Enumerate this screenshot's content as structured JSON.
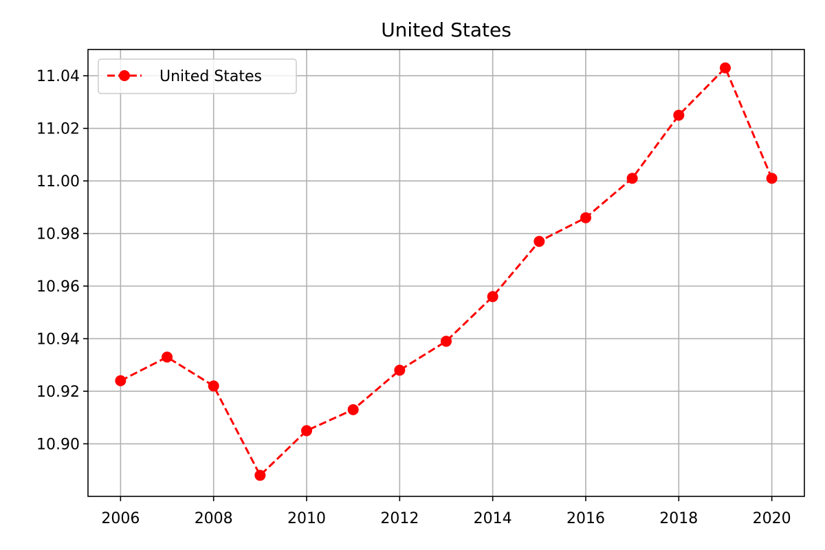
{
  "chart_data": {
    "type": "line",
    "title": "United States",
    "xlabel": "",
    "ylabel": "",
    "x": [
      2006,
      2007,
      2008,
      2009,
      2010,
      2011,
      2012,
      2013,
      2014,
      2015,
      2016,
      2017,
      2018,
      2019,
      2020
    ],
    "series": [
      {
        "name": "United States",
        "values": [
          10.924,
          10.933,
          10.922,
          10.888,
          10.905,
          10.913,
          10.928,
          10.939,
          10.956,
          10.977,
          10.986,
          11.001,
          11.025,
          11.043,
          11.001
        ],
        "color": "#ff0000",
        "line_style": "dashed",
        "marker": "circle"
      }
    ],
    "xlim": [
      2005.3,
      2020.7
    ],
    "ylim": [
      10.88,
      11.05
    ],
    "x_ticks": [
      2006,
      2008,
      2010,
      2012,
      2014,
      2016,
      2018,
      2020
    ],
    "y_ticks": [
      10.9,
      10.92,
      10.94,
      10.96,
      10.98,
      11.0,
      11.02,
      11.04
    ],
    "y_tick_labels": [
      "10.90",
      "10.92",
      "10.94",
      "10.96",
      "10.98",
      "11.00",
      "11.02",
      "11.04"
    ],
    "grid": true,
    "legend_position": "top-left"
  }
}
